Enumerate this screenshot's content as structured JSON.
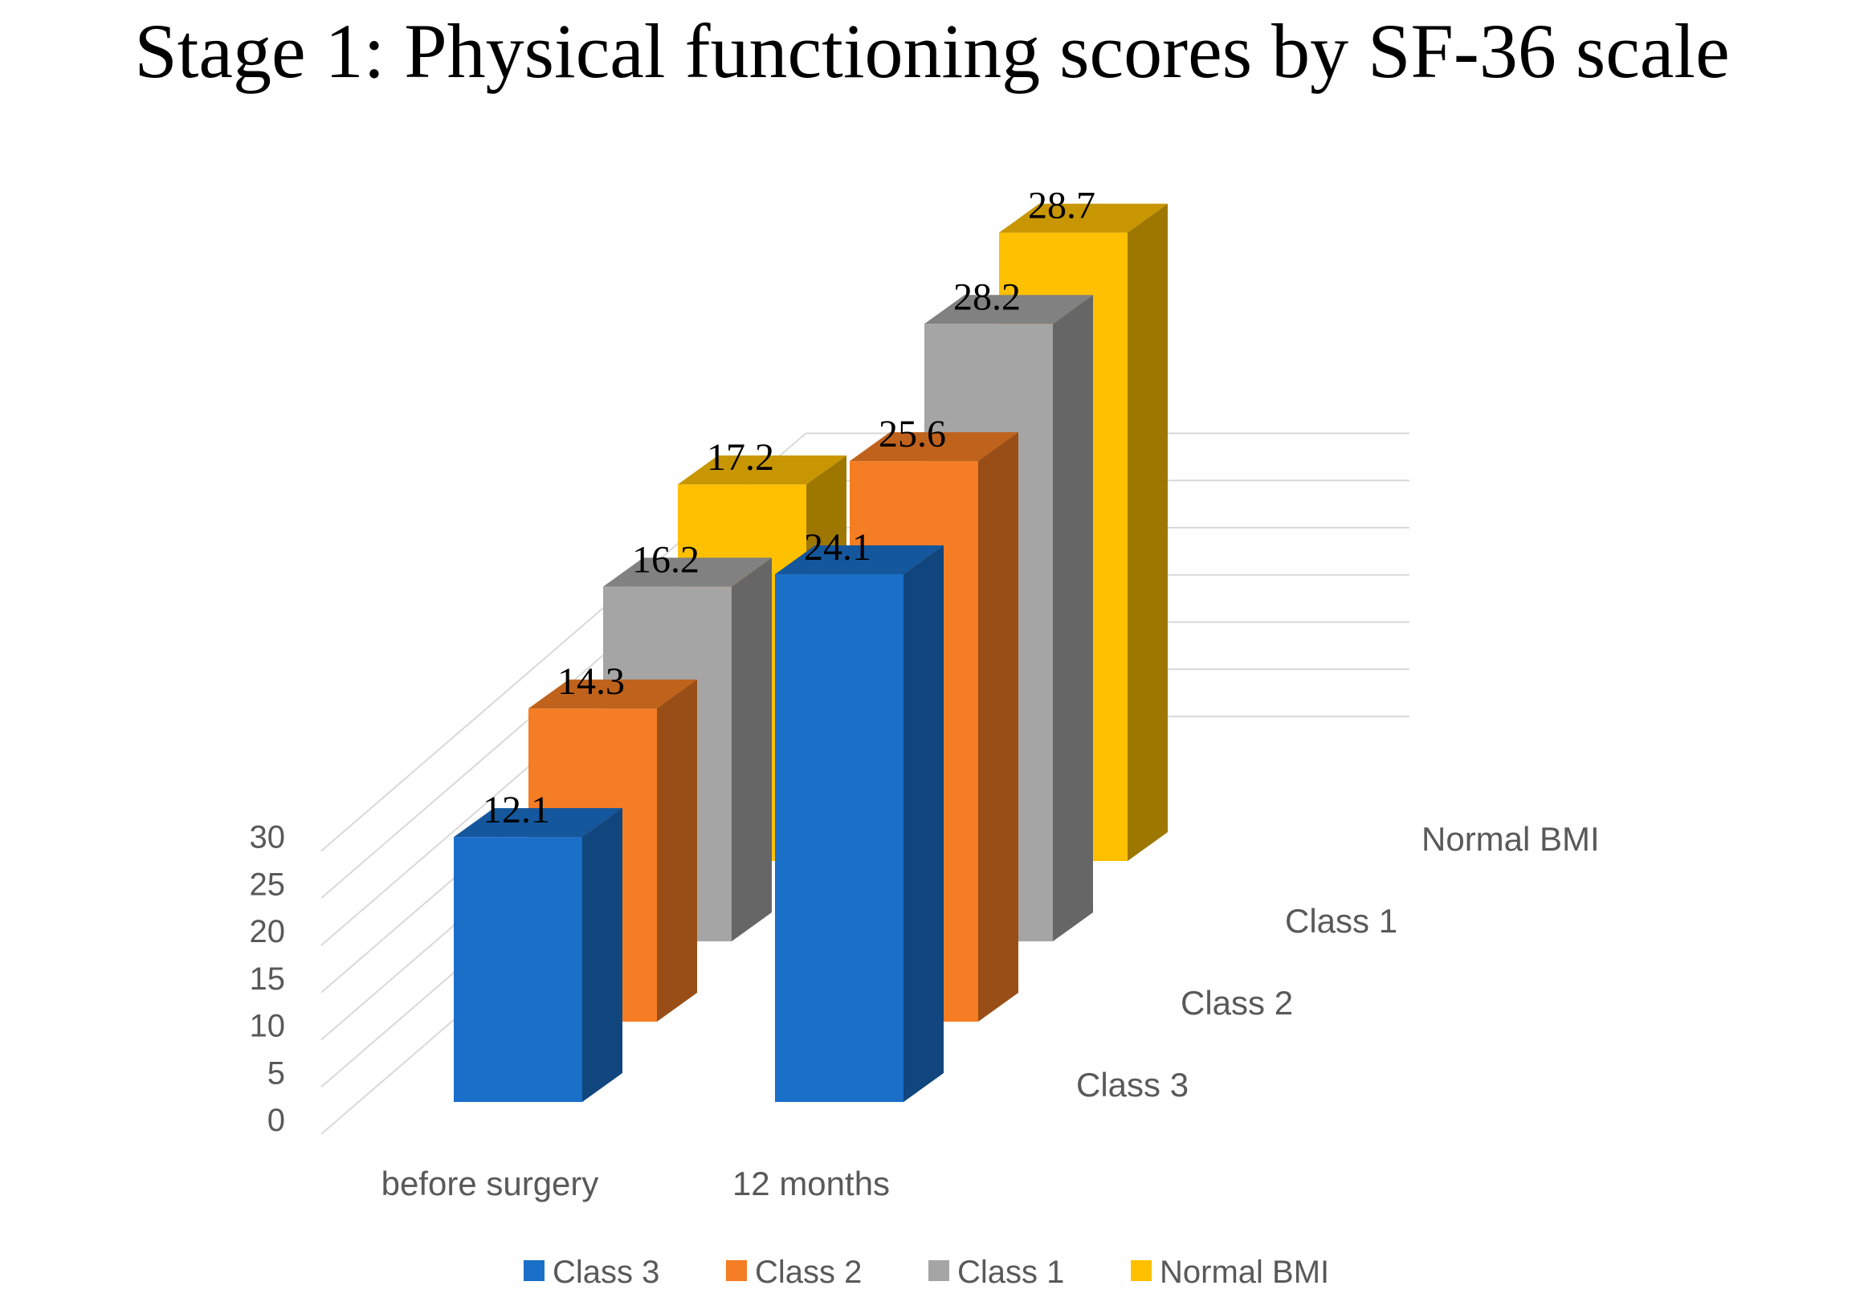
{
  "chart_data": {
    "type": "bar",
    "title": "Stage 1: Physical functioning scores by SF-36 scale",
    "categories": [
      "before surgery",
      "12 months"
    ],
    "depth_categories": [
      "Class 3",
      "Class 2",
      "Class 1",
      "Normal BMI"
    ],
    "series": [
      {
        "name": "Class 3",
        "values": [
          12.1,
          24.1
        ],
        "color": "#1a6fc9"
      },
      {
        "name": "Class 2",
        "values": [
          14.3,
          25.6
        ],
        "color": "#f57d23"
      },
      {
        "name": "Class 1",
        "values": [
          16.2,
          28.2
        ],
        "color": "#a5a5a5"
      },
      {
        "name": "Normal BMI",
        "values": [
          17.2,
          28.7
        ],
        "color": "#ffc000"
      }
    ],
    "y_ticks": [
      "0",
      "5",
      "10",
      "15",
      "20",
      "25",
      "30"
    ],
    "ylim": [
      0,
      30
    ],
    "grid": true,
    "legend": "bottom"
  }
}
